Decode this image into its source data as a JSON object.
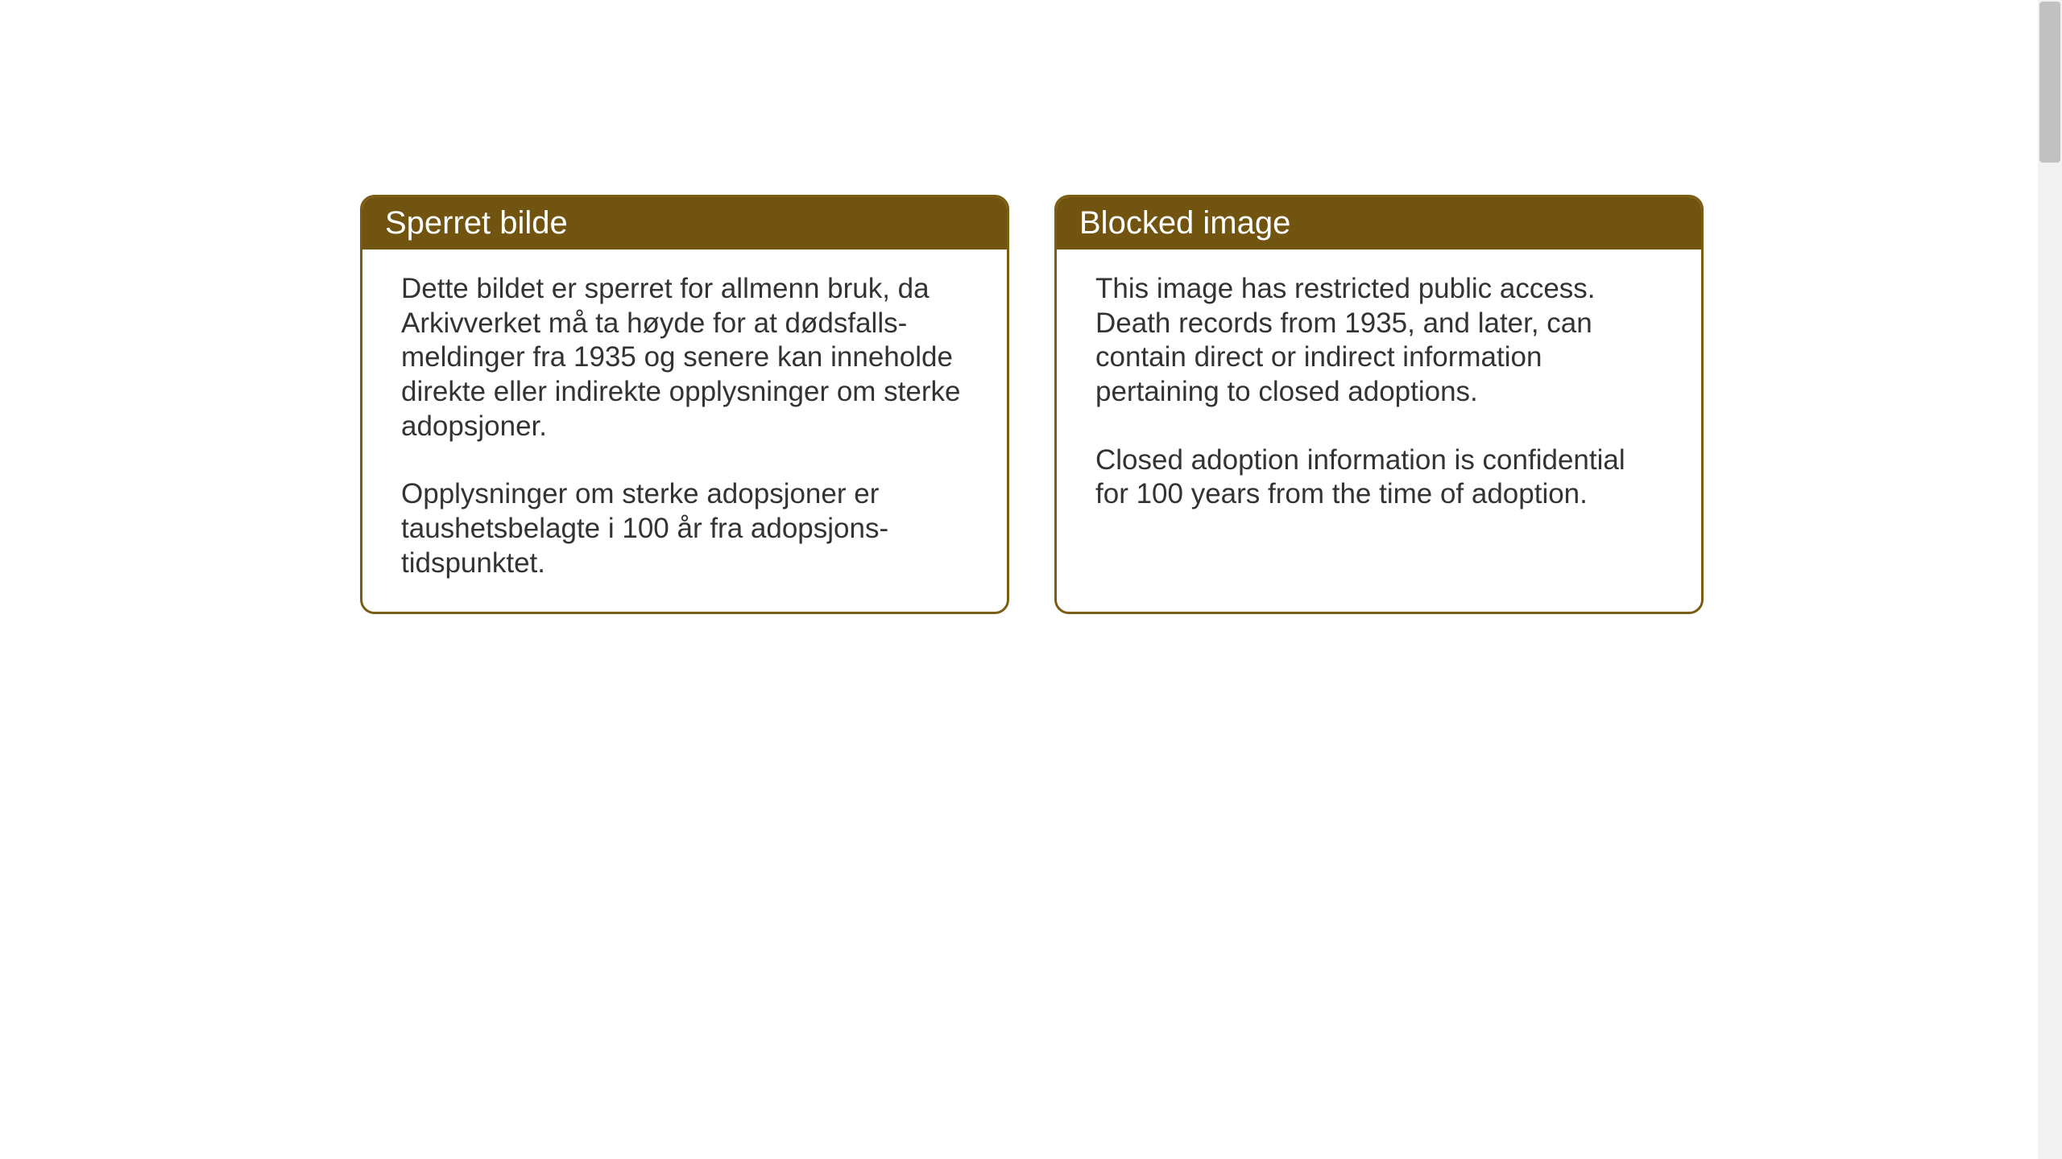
{
  "cards": [
    {
      "title": "Sperret bilde",
      "paragraph1": "Dette bildet er sperret for allmenn bruk, da Arkivverket må ta høyde for at dødsfalls-meldinger fra 1935 og senere kan inneholde direkte eller indirekte opplysninger om sterke adopsjoner.",
      "paragraph2": "Opplysninger om sterke adopsjoner er taushetsbelagte i 100 år fra adopsjons-tidspunktet."
    },
    {
      "title": "Blocked image",
      "paragraph1": "This image has restricted public access. Death records from 1935, and later, can contain direct or indirect information pertaining to closed adoptions.",
      "paragraph2": "Closed adoption information is confidential for 100 years from the time of adoption."
    }
  ],
  "styling": {
    "header_bg_color": "#715410",
    "header_text_color": "#ffffff",
    "border_color": "#7a5c12",
    "body_text_color": "#333333",
    "background_color": "#ffffff",
    "border_radius": "18px",
    "border_width": "3px",
    "title_fontsize": "40px",
    "body_fontsize": "35px"
  }
}
